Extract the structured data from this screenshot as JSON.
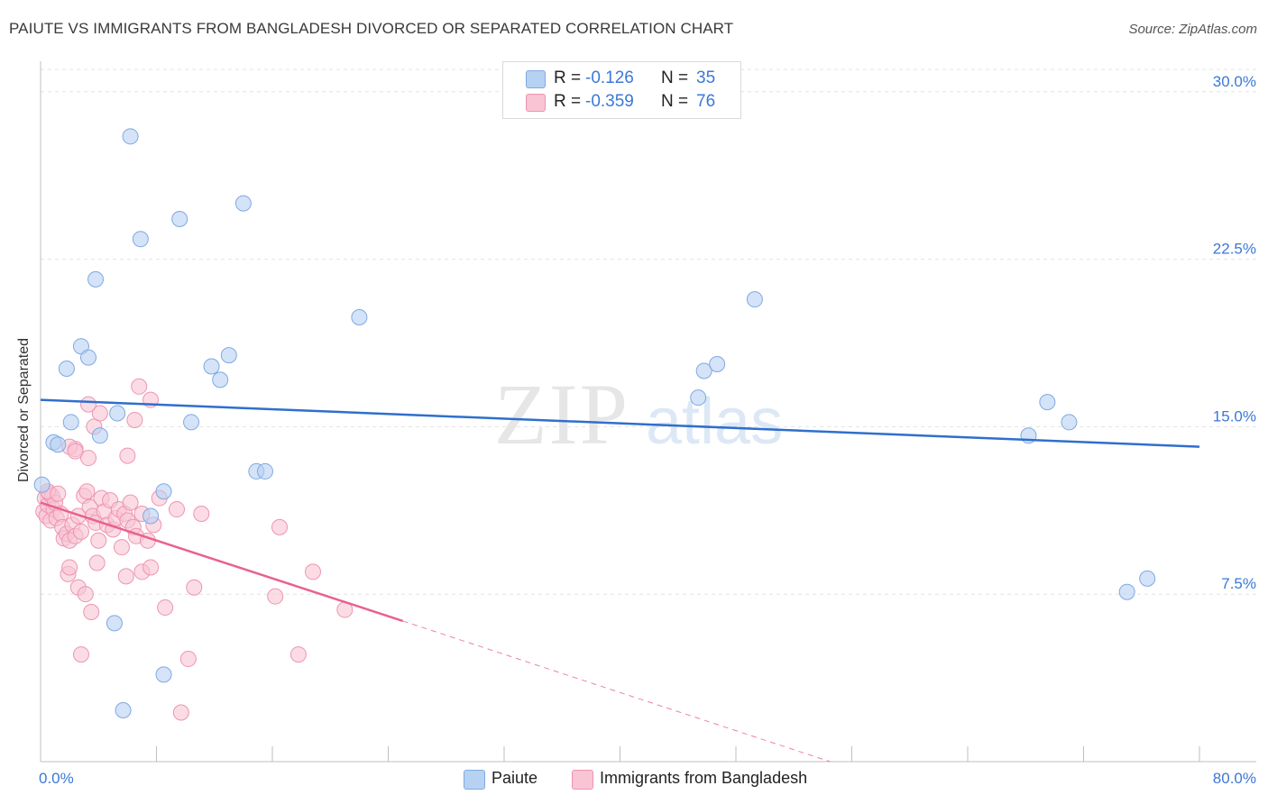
{
  "title": "PAIUTE VS IMMIGRANTS FROM BANGLADESH DIVORCED OR SEPARATED CORRELATION CHART",
  "source": "Source: ZipAtlas.com",
  "watermark": {
    "zip": "ZIP",
    "atlas": "atlas"
  },
  "legend": {
    "paiute": {
      "r_label": "R =",
      "r_value": "-0.126",
      "n_label": "N =",
      "n_value": "35"
    },
    "bangladesh": {
      "r_label": "R =",
      "r_value": "-0.359",
      "n_label": "N =",
      "n_value": "76"
    }
  },
  "bottom_legend": {
    "paiute": "Paiute",
    "bangladesh": "Immigrants from Bangladesh"
  },
  "colors": {
    "paiute_fill": "#b7d1f3",
    "paiute_stroke": "#7fa9e0",
    "paiute_line": "#2f6fcc",
    "bangladesh_fill": "#f9c4d4",
    "bangladesh_stroke": "#ee94b2",
    "bangladesh_line": "#e8628f",
    "tick_text": "#3b78d8",
    "grid": "#e3e3e3"
  },
  "chart_data": {
    "type": "scatter",
    "title": "PAIUTE VS IMMIGRANTS FROM BANGLADESH DIVORCED OR SEPARATED CORRELATION CHART",
    "xlabel": "",
    "ylabel": "Divorced or Separated",
    "xlim": [
      0,
      80
    ],
    "ylim": [
      0,
      31
    ],
    "y_ticks": [
      7.5,
      15.0,
      22.5,
      30.0
    ],
    "y_tick_labels": [
      "7.5%",
      "15.0%",
      "22.5%",
      "30.0%"
    ],
    "x_tick_labels": [
      "0.0%",
      "80.0%"
    ],
    "series": [
      {
        "name": "Paiute",
        "r": -0.126,
        "n": 35,
        "trend": {
          "x": [
            0,
            80
          ],
          "y": [
            16.2,
            14.1
          ]
        },
        "points": [
          [
            6.2,
            28.0
          ],
          [
            14.0,
            25.0
          ],
          [
            9.6,
            24.3
          ],
          [
            6.9,
            23.4
          ],
          [
            3.8,
            21.6
          ],
          [
            49.3,
            20.7
          ],
          [
            22.0,
            19.9
          ],
          [
            2.8,
            18.6
          ],
          [
            3.3,
            18.1
          ],
          [
            13.0,
            18.2
          ],
          [
            1.8,
            17.6
          ],
          [
            11.8,
            17.7
          ],
          [
            12.4,
            17.1
          ],
          [
            45.8,
            17.5
          ],
          [
            46.7,
            17.8
          ],
          [
            45.4,
            16.3
          ],
          [
            69.5,
            16.1
          ],
          [
            5.3,
            15.6
          ],
          [
            2.1,
            15.2
          ],
          [
            10.4,
            15.2
          ],
          [
            71.0,
            15.2
          ],
          [
            4.1,
            14.6
          ],
          [
            68.2,
            14.6
          ],
          [
            0.9,
            14.3
          ],
          [
            1.2,
            14.2
          ],
          [
            14.9,
            13.0
          ],
          [
            15.5,
            13.0
          ],
          [
            0.1,
            12.4
          ],
          [
            8.5,
            12.1
          ],
          [
            7.6,
            11.0
          ],
          [
            76.4,
            8.2
          ],
          [
            75.0,
            7.6
          ],
          [
            5.1,
            6.2
          ],
          [
            8.5,
            3.9
          ],
          [
            5.7,
            2.3
          ]
        ]
      },
      {
        "name": "Immigrants from Bangladesh",
        "r": -0.359,
        "n": 76,
        "trend": {
          "x": [
            0,
            25
          ],
          "y": [
            11.6,
            6.3
          ]
        },
        "trend_dashed": {
          "x": [
            25,
            54.5
          ],
          "y": [
            6.3,
            0
          ]
        },
        "points": [
          [
            0.2,
            11.2
          ],
          [
            0.3,
            11.8
          ],
          [
            0.4,
            11.0
          ],
          [
            0.5,
            11.5
          ],
          [
            0.6,
            12.0
          ],
          [
            0.7,
            10.8
          ],
          [
            0.8,
            11.9
          ],
          [
            0.9,
            11.3
          ],
          [
            1.0,
            11.6
          ],
          [
            1.1,
            10.9
          ],
          [
            0.5,
            12.1
          ],
          [
            1.2,
            12.0
          ],
          [
            1.4,
            11.1
          ],
          [
            1.5,
            10.5
          ],
          [
            1.6,
            10.0
          ],
          [
            1.8,
            10.2
          ],
          [
            2.0,
            9.9
          ],
          [
            2.2,
            10.6
          ],
          [
            2.4,
            10.1
          ],
          [
            2.6,
            11.0
          ],
          [
            2.8,
            10.3
          ],
          [
            3.0,
            11.9
          ],
          [
            3.2,
            12.1
          ],
          [
            3.4,
            11.4
          ],
          [
            3.6,
            11.0
          ],
          [
            3.8,
            10.7
          ],
          [
            4.0,
            9.9
          ],
          [
            4.2,
            11.8
          ],
          [
            4.4,
            11.2
          ],
          [
            4.6,
            10.6
          ],
          [
            4.8,
            11.7
          ],
          [
            5.0,
            10.4
          ],
          [
            5.2,
            10.9
          ],
          [
            5.4,
            11.3
          ],
          [
            5.6,
            9.6
          ],
          [
            5.8,
            11.1
          ],
          [
            6.0,
            10.8
          ],
          [
            6.2,
            11.6
          ],
          [
            6.4,
            10.5
          ],
          [
            6.6,
            10.1
          ],
          [
            7.0,
            11.1
          ],
          [
            7.4,
            9.9
          ],
          [
            7.8,
            10.6
          ],
          [
            8.2,
            11.8
          ],
          [
            2.4,
            14.0
          ],
          [
            2.0,
            14.1
          ],
          [
            3.3,
            13.6
          ],
          [
            6.0,
            13.7
          ],
          [
            3.7,
            15.0
          ],
          [
            4.1,
            15.6
          ],
          [
            6.5,
            15.3
          ],
          [
            7.6,
            16.2
          ],
          [
            6.8,
            16.8
          ],
          [
            3.3,
            16.0
          ],
          [
            2.4,
            13.9
          ],
          [
            11.1,
            11.1
          ],
          [
            9.4,
            11.3
          ],
          [
            16.5,
            10.5
          ],
          [
            1.9,
            8.4
          ],
          [
            3.9,
            8.9
          ],
          [
            7.0,
            8.5
          ],
          [
            7.6,
            8.7
          ],
          [
            2.0,
            8.7
          ],
          [
            5.9,
            8.3
          ],
          [
            18.8,
            8.5
          ],
          [
            2.6,
            7.8
          ],
          [
            10.6,
            7.8
          ],
          [
            3.1,
            7.5
          ],
          [
            16.2,
            7.4
          ],
          [
            8.6,
            6.9
          ],
          [
            3.5,
            6.7
          ],
          [
            21.0,
            6.8
          ],
          [
            2.8,
            4.8
          ],
          [
            10.2,
            4.6
          ],
          [
            17.8,
            4.8
          ],
          [
            9.7,
            2.2
          ]
        ]
      }
    ]
  }
}
